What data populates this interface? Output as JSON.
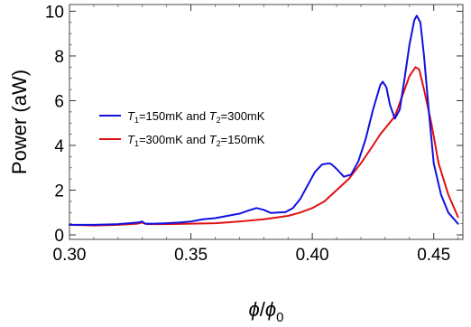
{
  "chart_data": {
    "type": "line",
    "title": "",
    "xlabel_parts": [
      {
        "text": "ϕ",
        "italic": true
      },
      {
        "text": "/",
        "italic": false
      },
      {
        "text": "ϕ",
        "italic": true
      },
      {
        "text": "0",
        "italic": false,
        "sub": true
      }
    ],
    "ylabel": "Power (aW)",
    "xlim": [
      0.3,
      0.462
    ],
    "ylim": [
      -0.2,
      10.3
    ],
    "xticks": [
      0.3,
      0.35,
      0.4,
      0.45
    ],
    "xtick_labels": [
      "0.30",
      "0.35",
      "0.40",
      "0.45"
    ],
    "yticks": [
      0,
      2,
      4,
      6,
      8,
      10
    ],
    "ytick_labels": [
      "0",
      "2",
      "4",
      "6",
      "8",
      "10"
    ],
    "grid": false,
    "legend_position": "left-middle",
    "series": [
      {
        "color": "#1010e0",
        "legend_parts": [
          {
            "text": "T",
            "italic": true
          },
          {
            "text": "1",
            "sub": true
          },
          {
            "text": "=150mK and "
          },
          {
            "text": "T",
            "italic": true
          },
          {
            "text": "2",
            "sub": true
          },
          {
            "text": "=300mK"
          }
        ],
        "x": [
          0.3,
          0.31,
          0.32,
          0.328,
          0.33,
          0.331,
          0.335,
          0.34,
          0.345,
          0.35,
          0.355,
          0.36,
          0.365,
          0.37,
          0.374,
          0.377,
          0.38,
          0.383,
          0.386,
          0.389,
          0.392,
          0.395,
          0.398,
          0.401,
          0.404,
          0.407,
          0.408,
          0.41,
          0.413,
          0.416,
          0.419,
          0.422,
          0.425,
          0.428,
          0.429,
          0.4305,
          0.432,
          0.434,
          0.436,
          0.438,
          0.44,
          0.442,
          0.443,
          0.4445,
          0.446,
          0.448,
          0.45,
          0.453,
          0.456,
          0.46
        ],
        "values": [
          0.45,
          0.45,
          0.48,
          0.55,
          0.6,
          0.5,
          0.5,
          0.52,
          0.55,
          0.6,
          0.7,
          0.75,
          0.85,
          0.95,
          1.1,
          1.2,
          1.12,
          0.98,
          1.0,
          1.02,
          1.2,
          1.6,
          2.2,
          2.8,
          3.15,
          3.2,
          3.15,
          2.95,
          2.6,
          2.7,
          3.3,
          4.3,
          5.6,
          6.7,
          6.85,
          6.6,
          5.8,
          5.2,
          5.6,
          7.0,
          8.5,
          9.6,
          9.8,
          9.5,
          8.0,
          5.5,
          3.2,
          1.8,
          1.0,
          0.5
        ]
      },
      {
        "color": "#e01010",
        "legend_parts": [
          {
            "text": "T",
            "italic": true
          },
          {
            "text": "1",
            "sub": true
          },
          {
            "text": "=300mK and "
          },
          {
            "text": "T",
            "italic": true
          },
          {
            "text": "2",
            "sub": true
          },
          {
            "text": "=150mK"
          }
        ],
        "x": [
          0.3,
          0.31,
          0.32,
          0.328,
          0.33,
          0.332,
          0.34,
          0.35,
          0.36,
          0.37,
          0.38,
          0.39,
          0.395,
          0.4,
          0.405,
          0.41,
          0.415,
          0.42,
          0.425,
          0.428,
          0.431,
          0.434,
          0.437,
          0.44,
          0.4425,
          0.444,
          0.446,
          0.449,
          0.452,
          0.456,
          0.46
        ],
        "values": [
          0.45,
          0.42,
          0.45,
          0.5,
          0.55,
          0.48,
          0.48,
          0.5,
          0.52,
          0.6,
          0.7,
          0.85,
          1.0,
          1.2,
          1.5,
          2.0,
          2.5,
          3.2,
          4.0,
          4.5,
          4.9,
          5.3,
          6.2,
          7.1,
          7.5,
          7.4,
          6.5,
          5.0,
          3.2,
          1.8,
          0.8
        ]
      }
    ]
  }
}
